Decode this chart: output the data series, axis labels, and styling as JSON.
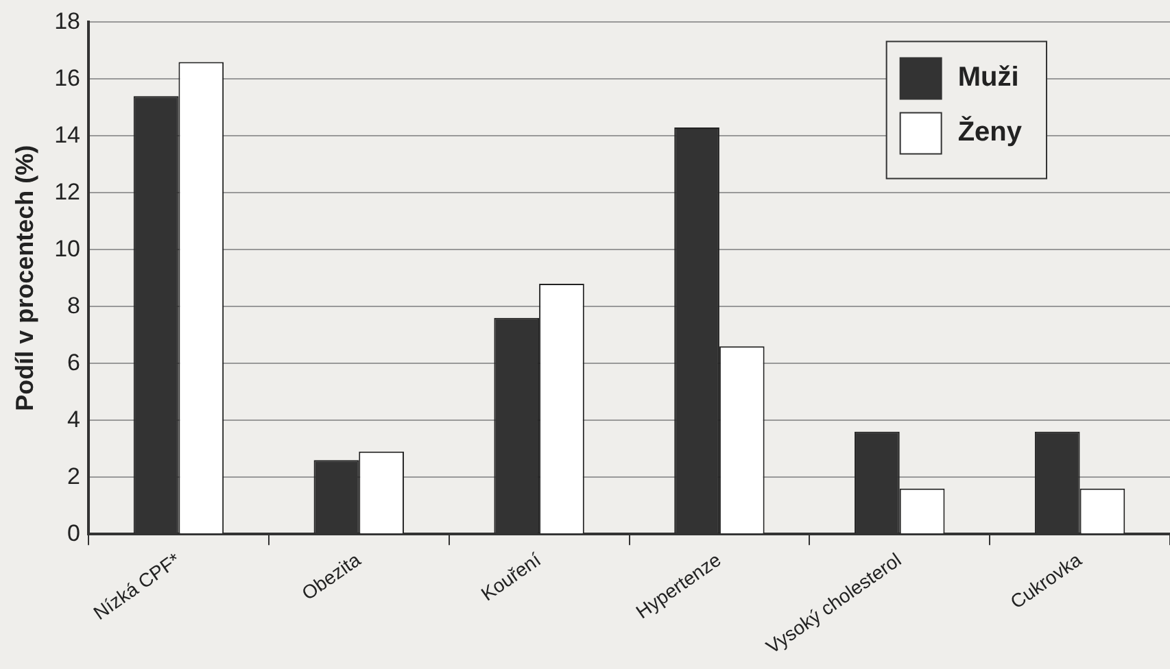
{
  "chart_data": {
    "type": "bar",
    "ylabel": "Podíl v procentech (%)",
    "categories": [
      "Nízká CPF*",
      "Obezita",
      "Kouření",
      "Hypertenze",
      "Vysoký cholesterol",
      "Cukrovka"
    ],
    "series": [
      {
        "name": "Muži",
        "color": "#333333",
        "values": [
          15.4,
          2.6,
          7.6,
          14.3,
          3.6,
          3.6
        ]
      },
      {
        "name": "Ženy",
        "color": "#ffffff",
        "values": [
          16.6,
          2.9,
          8.8,
          6.6,
          1.6,
          1.6
        ]
      }
    ],
    "ylim": [
      0,
      18
    ],
    "yticks": [
      0,
      2,
      4,
      6,
      8,
      10,
      12,
      14,
      16,
      18
    ],
    "grid": "y",
    "legend": "top right"
  }
}
